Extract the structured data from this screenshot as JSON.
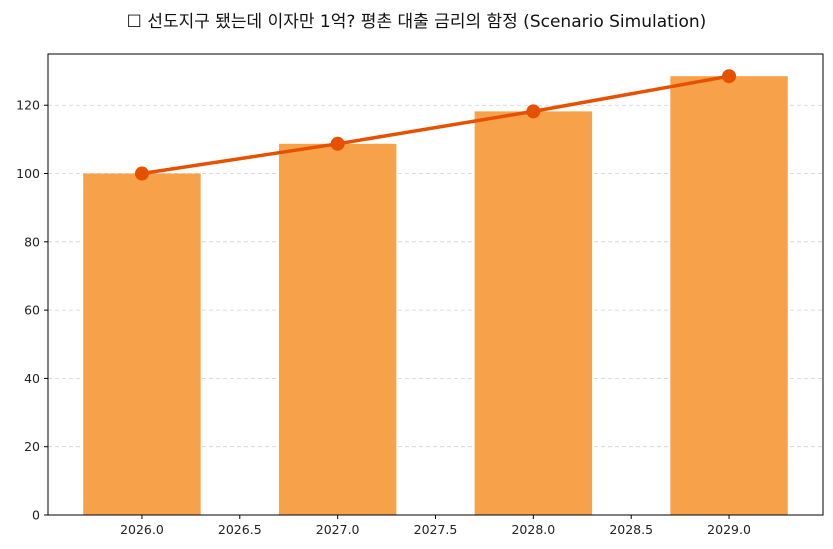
{
  "chart_data": {
    "type": "bar",
    "title": "☐ 선도지구 됐는데 이자만 1억? 평촌 대출 금리의 함정 (Scenario Simulation)",
    "xlabel": "",
    "ylabel": "",
    "x": [
      2026,
      2027,
      2028,
      2029
    ],
    "values": [
      100,
      108.7,
      118.2,
      128.5
    ],
    "line_values": [
      100,
      108.7,
      118.2,
      128.5
    ],
    "xlim": [
      2025.52,
      2029.48
    ],
    "ylim": [
      0,
      135
    ],
    "xticks": [
      "2026.0",
      "2026.5",
      "2027.0",
      "2027.5",
      "2028.0",
      "2028.5",
      "2029.0"
    ],
    "yticks": [
      "0",
      "20",
      "40",
      "60",
      "80",
      "100",
      "120"
    ],
    "grid": "horizontal dashed",
    "legend": "none",
    "colors": {
      "bar": "#F7A24B",
      "line": "#E65100",
      "grid": "#d0d0d0"
    }
  }
}
